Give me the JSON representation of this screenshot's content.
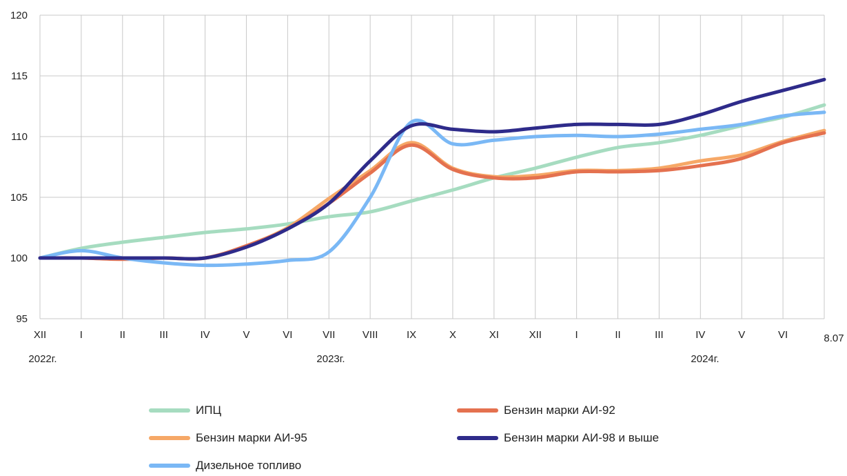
{
  "chart_data": {
    "type": "line",
    "ylim": [
      95,
      120
    ],
    "y_ticks": [
      "95",
      "100",
      "105",
      "110",
      "115",
      "120"
    ],
    "grid": "vertical-and-horizontal",
    "legend_position": "bottom",
    "x_tick_labels": [
      "XII",
      "I",
      "II",
      "III",
      "IV",
      "V",
      "VI",
      "VII",
      "VIII",
      "IX",
      "X",
      "XI",
      "XII",
      "I",
      "II",
      "III",
      "IV",
      "V",
      "VI",
      "8.07"
    ],
    "year_labels": [
      "2022г.",
      "2023г.",
      "2024г."
    ],
    "series": [
      {
        "name": "ИПЦ",
        "color": "#a6dcc0",
        "values": [
          100.0,
          100.8,
          101.3,
          101.7,
          102.1,
          102.4,
          102.8,
          103.4,
          103.8,
          104.7,
          105.6,
          106.6,
          107.4,
          108.3,
          109.1,
          109.5,
          110.1,
          110.9,
          111.6,
          112.6
        ]
      },
      {
        "name": "Бензин марки АИ-92",
        "color": "#e4714f",
        "values": [
          100.0,
          100.0,
          99.9,
          100.0,
          100.0,
          101.0,
          102.4,
          104.5,
          107.0,
          109.3,
          107.3,
          106.6,
          106.6,
          107.1,
          107.1,
          107.2,
          107.6,
          108.2,
          109.5,
          110.3
        ]
      },
      {
        "name": "Бензин марки АИ-95",
        "color": "#f6a867",
        "values": [
          100.0,
          100.0,
          100.0,
          100.0,
          100.0,
          101.0,
          102.5,
          104.9,
          107.2,
          109.5,
          107.4,
          106.7,
          106.8,
          107.2,
          107.2,
          107.4,
          108.0,
          108.5,
          109.6,
          110.5
        ]
      },
      {
        "name": "Бензин марки АИ-98 и выше",
        "color": "#2e2b8a",
        "values": [
          100.0,
          100.0,
          100.0,
          100.0,
          100.0,
          100.9,
          102.4,
          104.5,
          108.0,
          110.9,
          110.6,
          110.4,
          110.7,
          111.0,
          111.0,
          111.0,
          111.8,
          112.9,
          113.8,
          114.7
        ]
      },
      {
        "name": "Дизельное топливо",
        "color": "#7ab8f5",
        "values": [
          100.0,
          100.6,
          100.0,
          99.6,
          99.4,
          99.5,
          99.8,
          100.5,
          105.0,
          111.2,
          109.4,
          109.7,
          110.0,
          110.1,
          110.0,
          110.2,
          110.6,
          111.0,
          111.7,
          112.0
        ]
      }
    ]
  }
}
